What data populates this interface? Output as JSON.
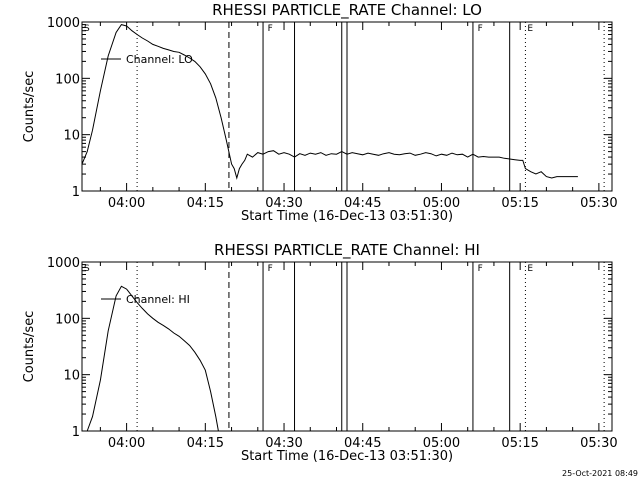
{
  "chart_data": [
    {
      "type": "line",
      "title": "RHESSI PARTICLE_RATE Channel: LO",
      "xlabel": "Start Time (16-Dec-13 03:51:30)",
      "ylabel": "Counts/sec",
      "scale_y": "log",
      "ylim": [
        1,
        1000
      ],
      "xlim": [
        "03:51:30",
        "05:32:30"
      ],
      "x_ticks": [
        "04:00",
        "04:15",
        "04:30",
        "04:45",
        "05:00",
        "05:15",
        "05:30"
      ],
      "y_ticks": [
        "1",
        "10",
        "100",
        "1000"
      ],
      "legend": "Channel: LO",
      "flags": [
        {
          "label": "S",
          "time": "03:51:30"
        },
        {
          "label": "F",
          "time": "04:26:30"
        },
        {
          "label": "F",
          "time": "05:06:30"
        },
        {
          "label": "E",
          "time": "05:16:00"
        }
      ],
      "solid_lines": [
        "04:26:00",
        "04:32:00",
        "04:41:00",
        "04:42:00",
        "05:06:00",
        "05:13:00"
      ],
      "dashed_lines": [
        "04:19:30"
      ],
      "dotted_lines": [
        "04:02:00",
        "05:16:00",
        "05:31:00"
      ],
      "series": [
        {
          "x": [
            "03:51:30",
            "03:52:30",
            "03:53:30",
            "03:55:00",
            "03:56:30",
            "03:58:00",
            "03:59:00",
            "04:00:00",
            "04:01:00",
            "04:02:00",
            "04:03:00",
            "04:04:00",
            "04:05:00",
            "04:06:00",
            "04:07:00",
            "04:08:00",
            "04:09:00",
            "04:10:00",
            "04:11:00",
            "04:12:00",
            "04:13:00",
            "04:14:00",
            "04:15:00",
            "04:16:00",
            "04:17:00",
            "04:18:00",
            "04:19:00",
            "04:20:00",
            "04:20:30",
            "04:21:00",
            "04:21:30",
            "04:22:00",
            "04:22:30",
            "04:23:00",
            "04:24:00",
            "04:25:00",
            "04:26:00",
            "04:27:00",
            "04:28:00",
            "04:29:00",
            "04:30:00",
            "04:31:00",
            "04:32:00",
            "04:33:00",
            "04:34:00",
            "04:35:00",
            "04:36:00",
            "04:37:00",
            "04:38:00",
            "04:39:00",
            "04:40:00",
            "04:41:00",
            "04:42:00",
            "04:43:00",
            "04:44:00",
            "04:45:00",
            "04:46:00",
            "04:47:00",
            "04:48:00",
            "04:49:00",
            "04:50:00",
            "04:51:00",
            "04:52:00",
            "04:53:00",
            "04:54:00",
            "04:55:00",
            "04:56:00",
            "04:57:00",
            "04:58:00",
            "04:59:00",
            "05:00:00",
            "05:01:00",
            "05:02:00",
            "05:03:00",
            "05:04:00",
            "05:05:00",
            "05:06:00",
            "05:07:00",
            "05:08:00",
            "05:09:00",
            "05:10:00",
            "05:11:00",
            "05:12:00",
            "05:13:00",
            "05:14:00",
            "05:15:00",
            "05:15:30",
            "05:16:00",
            "05:17:00",
            "05:18:00",
            "05:19:00",
            "05:20:00",
            "05:21:00",
            "05:22:00",
            "05:23:00",
            "05:24:00",
            "05:25:00",
            "05:26:00"
          ],
          "y": [
            3,
            5,
            12,
            60,
            250,
            650,
            900,
            850,
            700,
            600,
            520,
            460,
            400,
            370,
            340,
            320,
            300,
            290,
            260,
            230,
            200,
            160,
            120,
            80,
            45,
            20,
            8,
            3,
            2.5,
            1.7,
            2.5,
            3,
            3.5,
            4.5,
            4,
            4.8,
            4.5,
            5,
            5.2,
            4.5,
            4.8,
            4.5,
            4,
            4.6,
            4.3,
            4.7,
            4.5,
            4.8,
            4.3,
            4.6,
            4.5,
            5,
            4.5,
            4.8,
            4.6,
            4.4,
            4.7,
            4.5,
            4.3,
            4.6,
            4.8,
            4.5,
            4.4,
            4.6,
            4.7,
            4.3,
            4.5,
            4.8,
            4.6,
            4.2,
            4.5,
            4.3,
            4.7,
            4.4,
            4.5,
            4,
            4.5,
            4,
            4.1,
            4,
            4,
            4,
            3.8,
            3.7,
            3.6,
            3.5,
            3.5,
            2.5,
            2.2,
            2,
            2.2,
            1.8,
            1.7,
            1.8,
            1.8,
            1.8,
            1.8,
            1.8
          ]
        }
      ]
    },
    {
      "type": "line",
      "title": "RHESSI PARTICLE_RATE Channel: HI",
      "xlabel": "Start Time (16-Dec-13 03:51:30)",
      "ylabel": "Counts/sec",
      "scale_y": "log",
      "ylim": [
        1,
        1000
      ],
      "xlim": [
        "03:51:30",
        "05:32:30"
      ],
      "x_ticks": [
        "04:00",
        "04:15",
        "04:30",
        "04:45",
        "05:00",
        "05:15",
        "05:30"
      ],
      "y_ticks": [
        "1",
        "10",
        "100",
        "1000"
      ],
      "legend": "Channel: HI",
      "flags": [
        {
          "label": "S",
          "time": "03:51:30"
        },
        {
          "label": "F",
          "time": "04:26:30"
        },
        {
          "label": "F",
          "time": "05:06:30"
        },
        {
          "label": "E",
          "time": "05:16:00"
        }
      ],
      "solid_lines": [
        "04:26:00",
        "04:32:00",
        "04:41:00",
        "04:42:00",
        "05:06:00",
        "05:13:00"
      ],
      "dashed_lines": [
        "04:19:30"
      ],
      "dotted_lines": [
        "04:02:00",
        "05:16:00",
        "05:31:00"
      ],
      "series": [
        {
          "x": [
            "03:52:30",
            "03:53:30",
            "03:55:00",
            "03:56:30",
            "03:58:00",
            "03:59:00",
            "04:00:00",
            "04:01:00",
            "04:02:00",
            "04:03:00",
            "04:04:00",
            "04:05:00",
            "04:06:00",
            "04:07:00",
            "04:08:00",
            "04:09:00",
            "04:10:00",
            "04:11:00",
            "04:12:00",
            "04:13:00",
            "04:14:00",
            "04:15:00",
            "04:16:00",
            "04:17:00",
            "04:17:30"
          ],
          "y": [
            1,
            1.8,
            8,
            60,
            250,
            370,
            330,
            250,
            190,
            150,
            120,
            100,
            85,
            75,
            65,
            55,
            48,
            40,
            33,
            25,
            18,
            12,
            5,
            1.8,
            1
          ]
        }
      ]
    }
  ],
  "footer": {
    "date": "25-Oct-2021 08:49"
  }
}
